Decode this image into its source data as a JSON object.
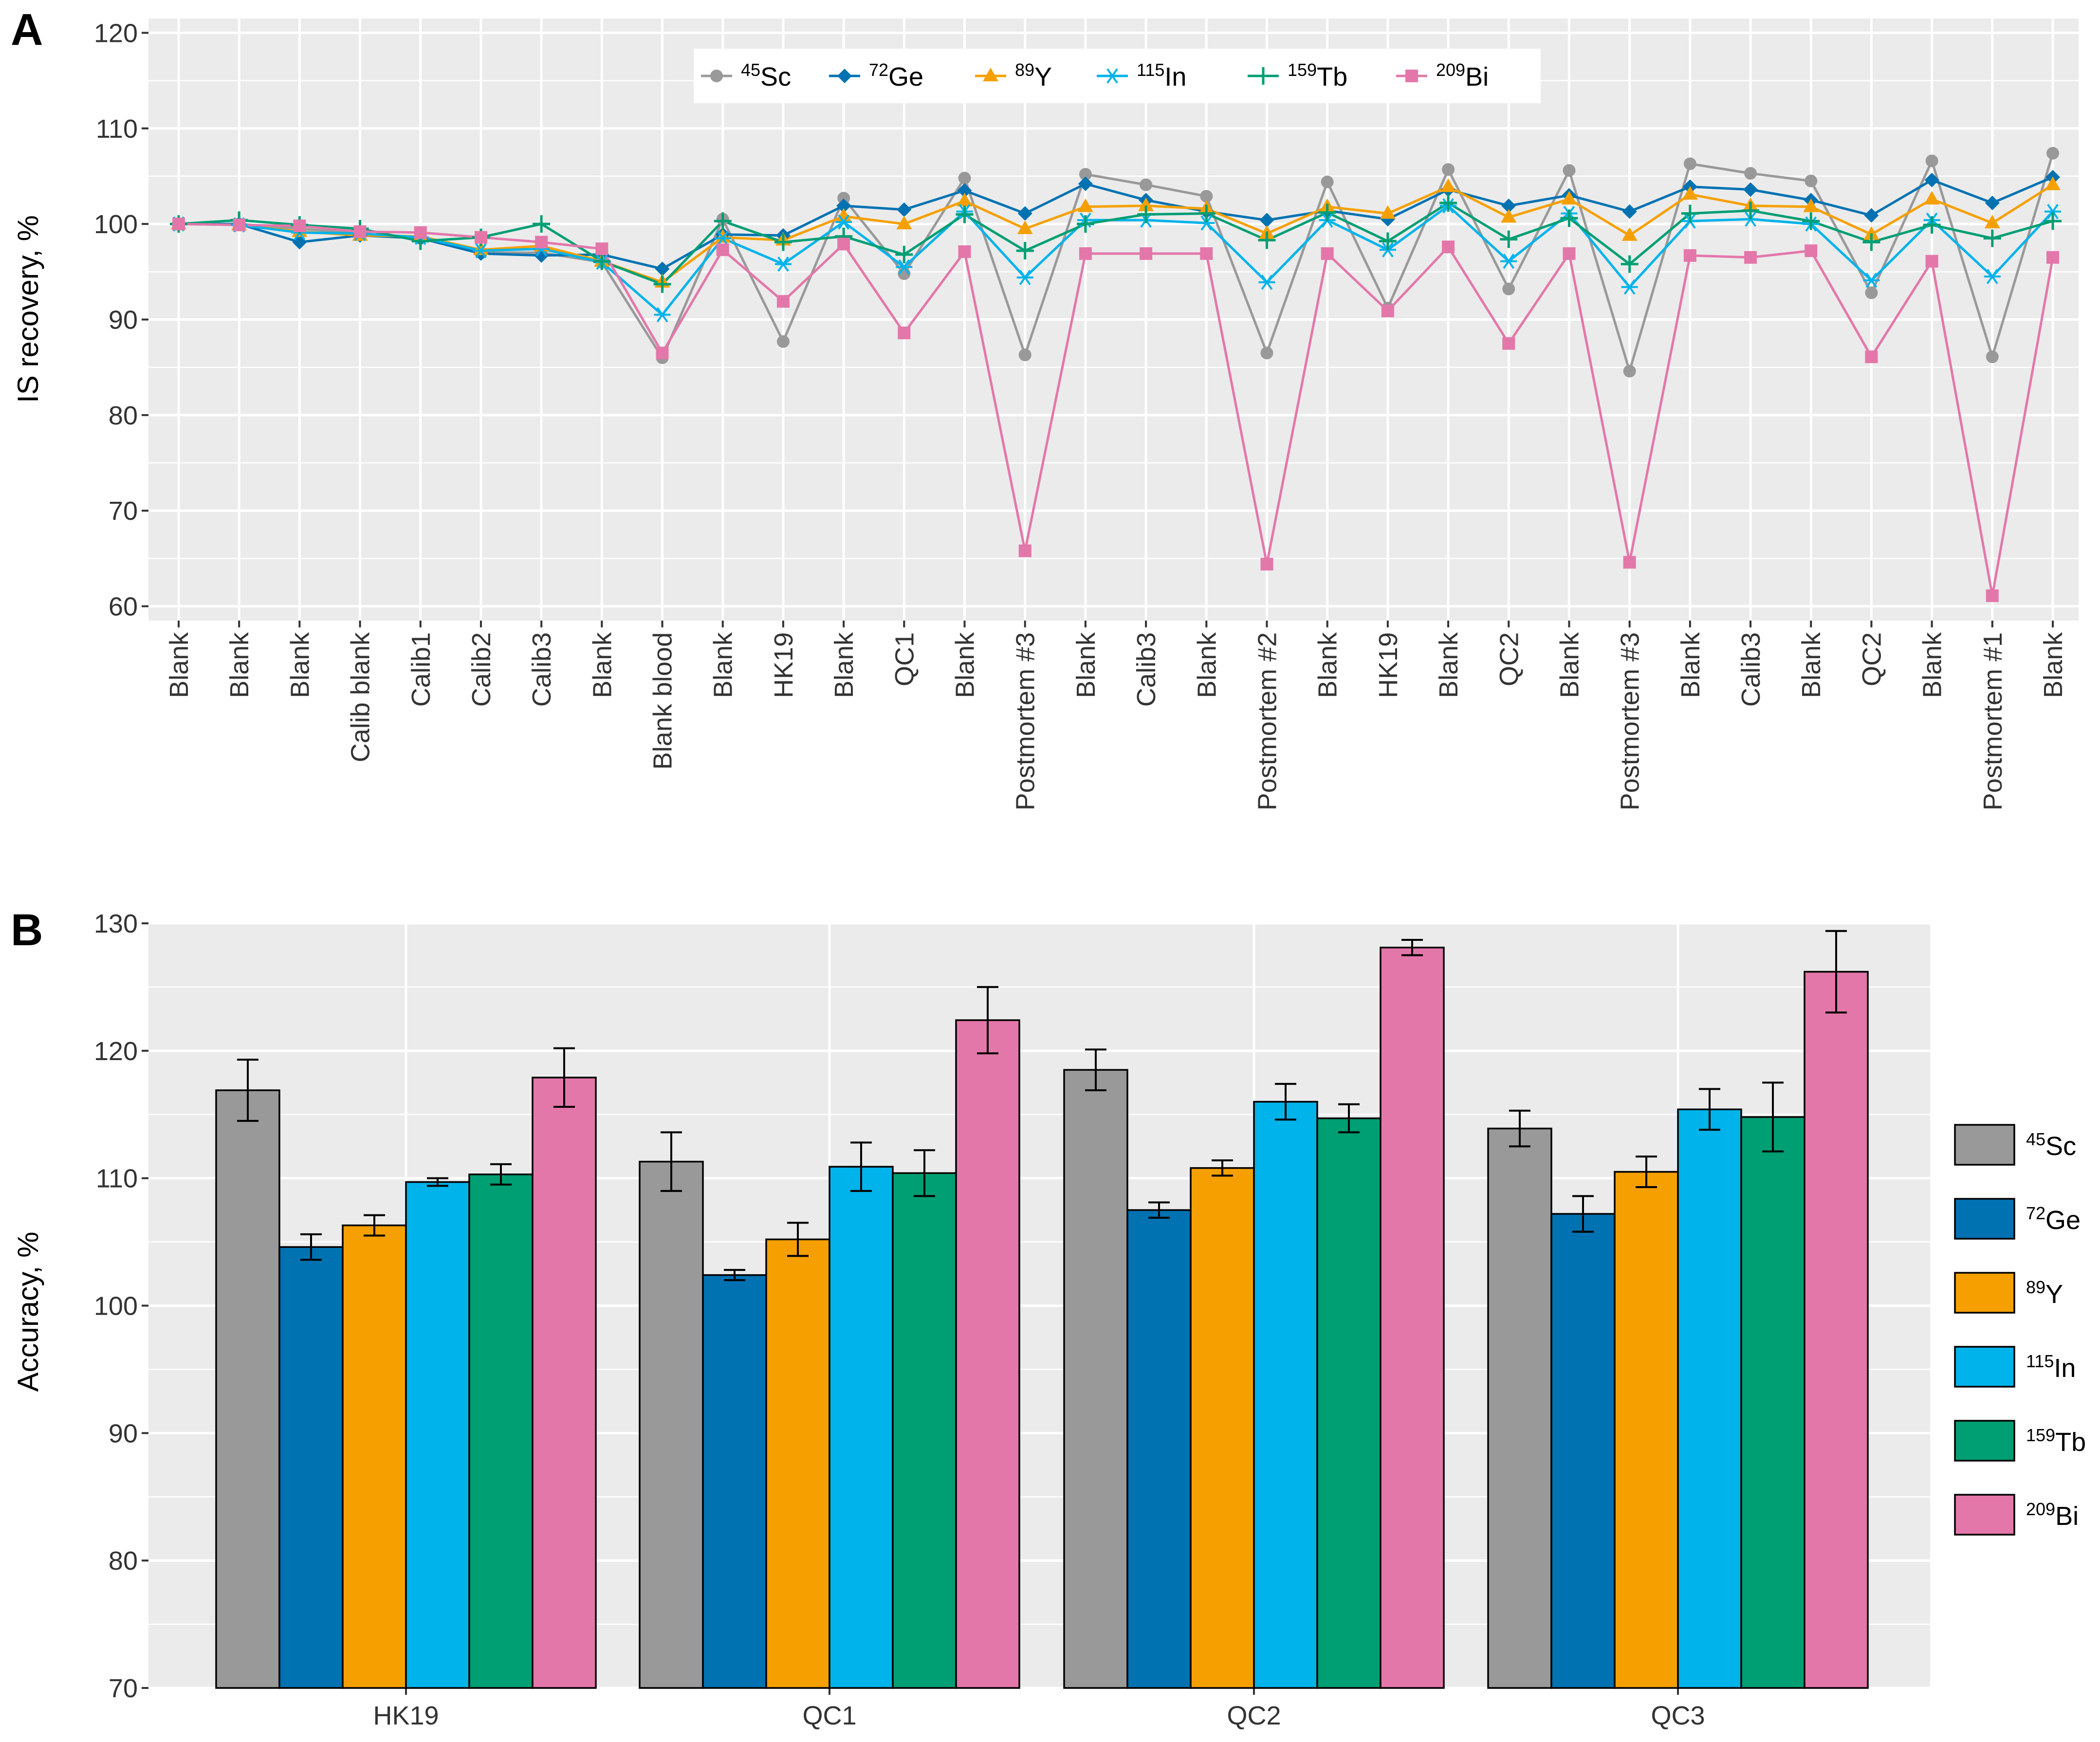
{
  "panels": {
    "a_label": "A",
    "b_label": "B"
  },
  "colors": {
    "45Sc": "#999999",
    "72Ge": "#0072B2",
    "89Y": "#F5A000",
    "115In": "#00B3EA",
    "159Tb": "#009E73",
    "209Bi": "#E377AA",
    "label_default": "#000000",
    "label_blue": "#0000FF",
    "label_red": "#FF0000",
    "panel_bg": "#EBEBEB",
    "grid": "#FFFFFF"
  },
  "chart_data": [
    {
      "type": "line",
      "panel": "A",
      "title": "",
      "xlabel": "",
      "ylabel": "IS recovery, %",
      "ylim": [
        58.5,
        121.5
      ],
      "yticks": [
        60,
        70,
        80,
        90,
        100,
        110,
        120
      ],
      "grid": true,
      "legend_position": "top-center",
      "categories": [
        {
          "label": "Blank",
          "color": "label_default"
        },
        {
          "label": "Blank",
          "color": "label_default"
        },
        {
          "label": "Blank",
          "color": "label_default"
        },
        {
          "label": "Calib blank",
          "color": "label_default"
        },
        {
          "label": "Calib1",
          "color": "label_default"
        },
        {
          "label": "Calib2",
          "color": "label_default"
        },
        {
          "label": "Calib3",
          "color": "label_default"
        },
        {
          "label": "Blank",
          "color": "label_default"
        },
        {
          "label": "Blank blood",
          "color": "label_blue"
        },
        {
          "label": "Blank",
          "color": "label_default"
        },
        {
          "label": "HK19",
          "color": "label_blue"
        },
        {
          "label": "Blank",
          "color": "label_default"
        },
        {
          "label": "QC1",
          "color": "label_blue"
        },
        {
          "label": "Blank",
          "color": "label_default"
        },
        {
          "label": "Postmortem #3",
          "color": "label_red"
        },
        {
          "label": "Blank",
          "color": "label_default"
        },
        {
          "label": "Calib3",
          "color": "label_default"
        },
        {
          "label": "Blank",
          "color": "label_default"
        },
        {
          "label": "Postmortem #2",
          "color": "label_red"
        },
        {
          "label": "Blank",
          "color": "label_default"
        },
        {
          "label": "HK19",
          "color": "label_blue"
        },
        {
          "label": "Blank",
          "color": "label_default"
        },
        {
          "label": "QC2",
          "color": "label_blue"
        },
        {
          "label": "Blank",
          "color": "label_default"
        },
        {
          "label": "Postmortem #3",
          "color": "label_red"
        },
        {
          "label": "Blank",
          "color": "label_default"
        },
        {
          "label": "Calib3",
          "color": "label_default"
        },
        {
          "label": "Blank",
          "color": "label_default"
        },
        {
          "label": "QC2",
          "color": "label_blue"
        },
        {
          "label": "Blank",
          "color": "label_default"
        },
        {
          "label": "Postmortem #1",
          "color": "label_red"
        },
        {
          "label": "Blank",
          "color": "label_default"
        }
      ],
      "series": [
        {
          "key": "45Sc",
          "mass": "45",
          "symbol": "Sc",
          "marker": "circle",
          "values": [
            100,
            100,
            99.5,
            99,
            98.5,
            97,
            97,
            96,
            86,
            100.5,
            87.7,
            102.7,
            94.8,
            104.8,
            86.3,
            105.2,
            104.1,
            102.9,
            86.5,
            104.4,
            91.2,
            105.7,
            93.2,
            105.6,
            84.6,
            106.3,
            105.3,
            104.5,
            92.8,
            106.6,
            86.1,
            107.4
          ]
        },
        {
          "key": "72Ge",
          "mass": "72",
          "symbol": "Ge",
          "marker": "diamond",
          "values": [
            100,
            100,
            98.1,
            98.8,
            98.5,
            96.9,
            96.7,
            96.8,
            95.3,
            98.9,
            98.8,
            101.9,
            101.5,
            103.5,
            101.1,
            104.2,
            102.5,
            101.3,
            100.4,
            101.4,
            100.5,
            103.6,
            101.9,
            103,
            101.3,
            103.9,
            103.6,
            102.5,
            100.9,
            104.6,
            102.2,
            104.9
          ]
        },
        {
          "key": "89Y",
          "mass": "89",
          "symbol": "Y",
          "marker": "triangle",
          "values": [
            100,
            99.9,
            99.2,
            98.8,
            98.7,
            97.3,
            97.7,
            96.1,
            93.9,
            98.6,
            98.3,
            100.8,
            100,
            102.4,
            99.5,
            101.8,
            101.9,
            101.6,
            99,
            101.8,
            101.1,
            103.9,
            100.7,
            102.6,
            98.8,
            103.1,
            101.9,
            101.8,
            98.9,
            102.6,
            100.1,
            104.1
          ]
        },
        {
          "key": "115In",
          "mass": "115",
          "symbol": "In",
          "marker": "asterisk",
          "values": [
            100,
            99.9,
            99.1,
            99,
            98.6,
            97.2,
            97.4,
            96,
            90.5,
            98.5,
            95.8,
            100.2,
            95.5,
            101.3,
            94.4,
            100.4,
            100.4,
            100.1,
            93.9,
            100.4,
            97.3,
            101.9,
            96.1,
            101.1,
            93.4,
            100.3,
            100.5,
            100,
            94.1,
            100.4,
            94.5,
            101.3
          ]
        },
        {
          "key": "159Tb",
          "mass": "159",
          "symbol": "Tb",
          "marker": "plus",
          "values": [
            100,
            100.4,
            99.9,
            99.5,
            98.2,
            98.6,
            100,
            96.1,
            93.7,
            100.3,
            98.1,
            98.7,
            96.8,
            101,
            97.2,
            100,
            101,
            101.1,
            98.3,
            101.2,
            98.2,
            102.2,
            98.4,
            100.6,
            95.8,
            101.1,
            101.4,
            100.3,
            98.1,
            99.9,
            98.5,
            100.3
          ]
        },
        {
          "key": "209Bi",
          "mass": "209",
          "symbol": "Bi",
          "marker": "square",
          "values": [
            100,
            99.9,
            99.8,
            99.2,
            99.1,
            98.6,
            98.1,
            97.4,
            86.5,
            97.3,
            91.9,
            97.9,
            88.6,
            97.1,
            65.8,
            96.9,
            96.9,
            96.9,
            64.4,
            96.9,
            90.9,
            97.6,
            87.5,
            96.9,
            64.6,
            96.7,
            96.5,
            97.2,
            86.1,
            96.1,
            61.1,
            96.5
          ]
        }
      ]
    },
    {
      "type": "bar",
      "panel": "B",
      "title": "",
      "xlabel": "",
      "ylabel": "Accuracy, %",
      "ylim": [
        70,
        130
      ],
      "yticks": [
        70,
        80,
        90,
        100,
        110,
        120,
        130
      ],
      "grid": true,
      "legend_position": "right",
      "categories": [
        "HK19",
        "QC1",
        "QC2",
        "QC3"
      ],
      "series": [
        {
          "key": "45Sc",
          "mass": "45",
          "symbol": "Sc",
          "values": [
            116.9,
            111.3,
            118.5,
            113.9
          ],
          "errors": [
            2.4,
            2.3,
            1.6,
            1.4
          ]
        },
        {
          "key": "72Ge",
          "mass": "72",
          "symbol": "Ge",
          "values": [
            104.6,
            102.4,
            107.5,
            107.2
          ],
          "errors": [
            1.0,
            0.4,
            0.6,
            1.4
          ]
        },
        {
          "key": "89Y",
          "mass": "89",
          "symbol": "Y",
          "values": [
            106.3,
            105.2,
            110.8,
            110.5
          ],
          "errors": [
            0.8,
            1.3,
            0.6,
            1.2
          ]
        },
        {
          "key": "115In",
          "mass": "115",
          "symbol": "In",
          "values": [
            109.7,
            110.9,
            116.0,
            115.4
          ],
          "errors": [
            0.3,
            1.9,
            1.4,
            1.6
          ]
        },
        {
          "key": "159Tb",
          "mass": "159",
          "symbol": "Tb",
          "values": [
            110.3,
            110.4,
            114.7,
            114.8
          ],
          "errors": [
            0.8,
            1.8,
            1.1,
            2.7
          ]
        },
        {
          "key": "209Bi",
          "mass": "209",
          "symbol": "Bi",
          "values": [
            117.9,
            122.4,
            128.1,
            126.2
          ],
          "errors": [
            2.3,
            2.6,
            0.6,
            3.2
          ]
        }
      ]
    }
  ]
}
